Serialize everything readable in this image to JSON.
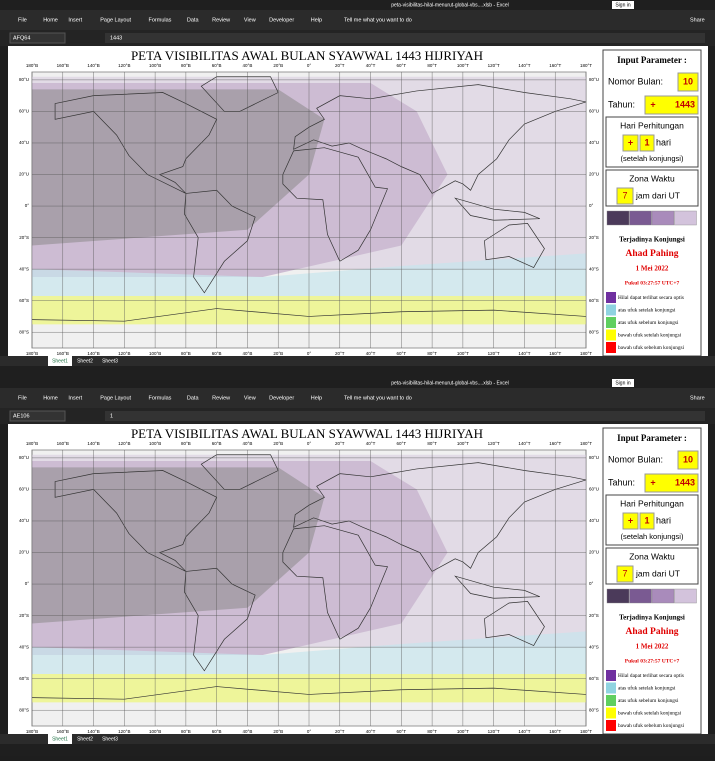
{
  "window": {
    "filename": "peta-visibilitas-hilal-menurut-global-vbs....xlsb - Excel",
    "sign_in": "Sign in",
    "share": "Share",
    "tell_me": "Tell me what you want to do"
  },
  "ribbon_tabs": [
    "File",
    "Home",
    "Insert",
    "Page Layout",
    "Formulas",
    "Data",
    "Review",
    "View",
    "Developer",
    "Help"
  ],
  "panels": [
    {
      "name_box": "AFQ64",
      "formula": "1443"
    },
    {
      "name_box": "AE106",
      "formula": "1"
    }
  ],
  "sheet_tabs": [
    "Sheet1",
    "Sheet2",
    "Sheet3"
  ],
  "map": {
    "title": "PETA VISIBILITAS AWAL BULAN SYAWWAL 1443 HIJRIYAH",
    "lon_labels": [
      "180°B",
      "160°B",
      "140°B",
      "120°B",
      "100°B",
      "80°B",
      "60°B",
      "40°B",
      "20°B",
      "0°",
      "20°T",
      "40°T",
      "60°T",
      "80°T",
      "100°T",
      "120°T",
      "140°T",
      "160°T",
      "180°T"
    ],
    "lat_labels": [
      "80°U",
      "60°U",
      "40°U",
      "20°U",
      "0°",
      "20°S",
      "40°S",
      "60°S",
      "80°S"
    ]
  },
  "params": {
    "heading": "Input Parameter :",
    "month_label": "Nomor Bulan:",
    "month": "10",
    "year_label": "Tahun:",
    "year_sign": "+",
    "year": "1443",
    "day_title": "Hari Perhitungan",
    "day_sign": "+",
    "day": "1",
    "day_unit": "hari",
    "day_note": "(setelah konjungsi)",
    "zone_title": "Zona Waktu",
    "zone": "7",
    "zone_unit": "jam dari UT",
    "conj_title": "Terjadinya Konjungsi",
    "conj_day": "Ahad Pahing",
    "conj_date": "1 Mei 2022",
    "conj_time": "Pukul 03:27:57 UTC+7"
  },
  "legend": [
    {
      "label": "Hilal dapat terlihat secara optis",
      "color": "#7030a0"
    },
    {
      "label": "atas ufuk setelah konjungsi",
      "color": "#8fd3e0"
    },
    {
      "label": "atas ufuk sebelum konjungsi",
      "color": "#5fcf5f"
    },
    {
      "label": "bawah ufuk setelah konjungsi",
      "color": "#ffff00"
    },
    {
      "label": "bawah ufuk sebelum konjungsi",
      "color": "#ff0000"
    }
  ]
}
